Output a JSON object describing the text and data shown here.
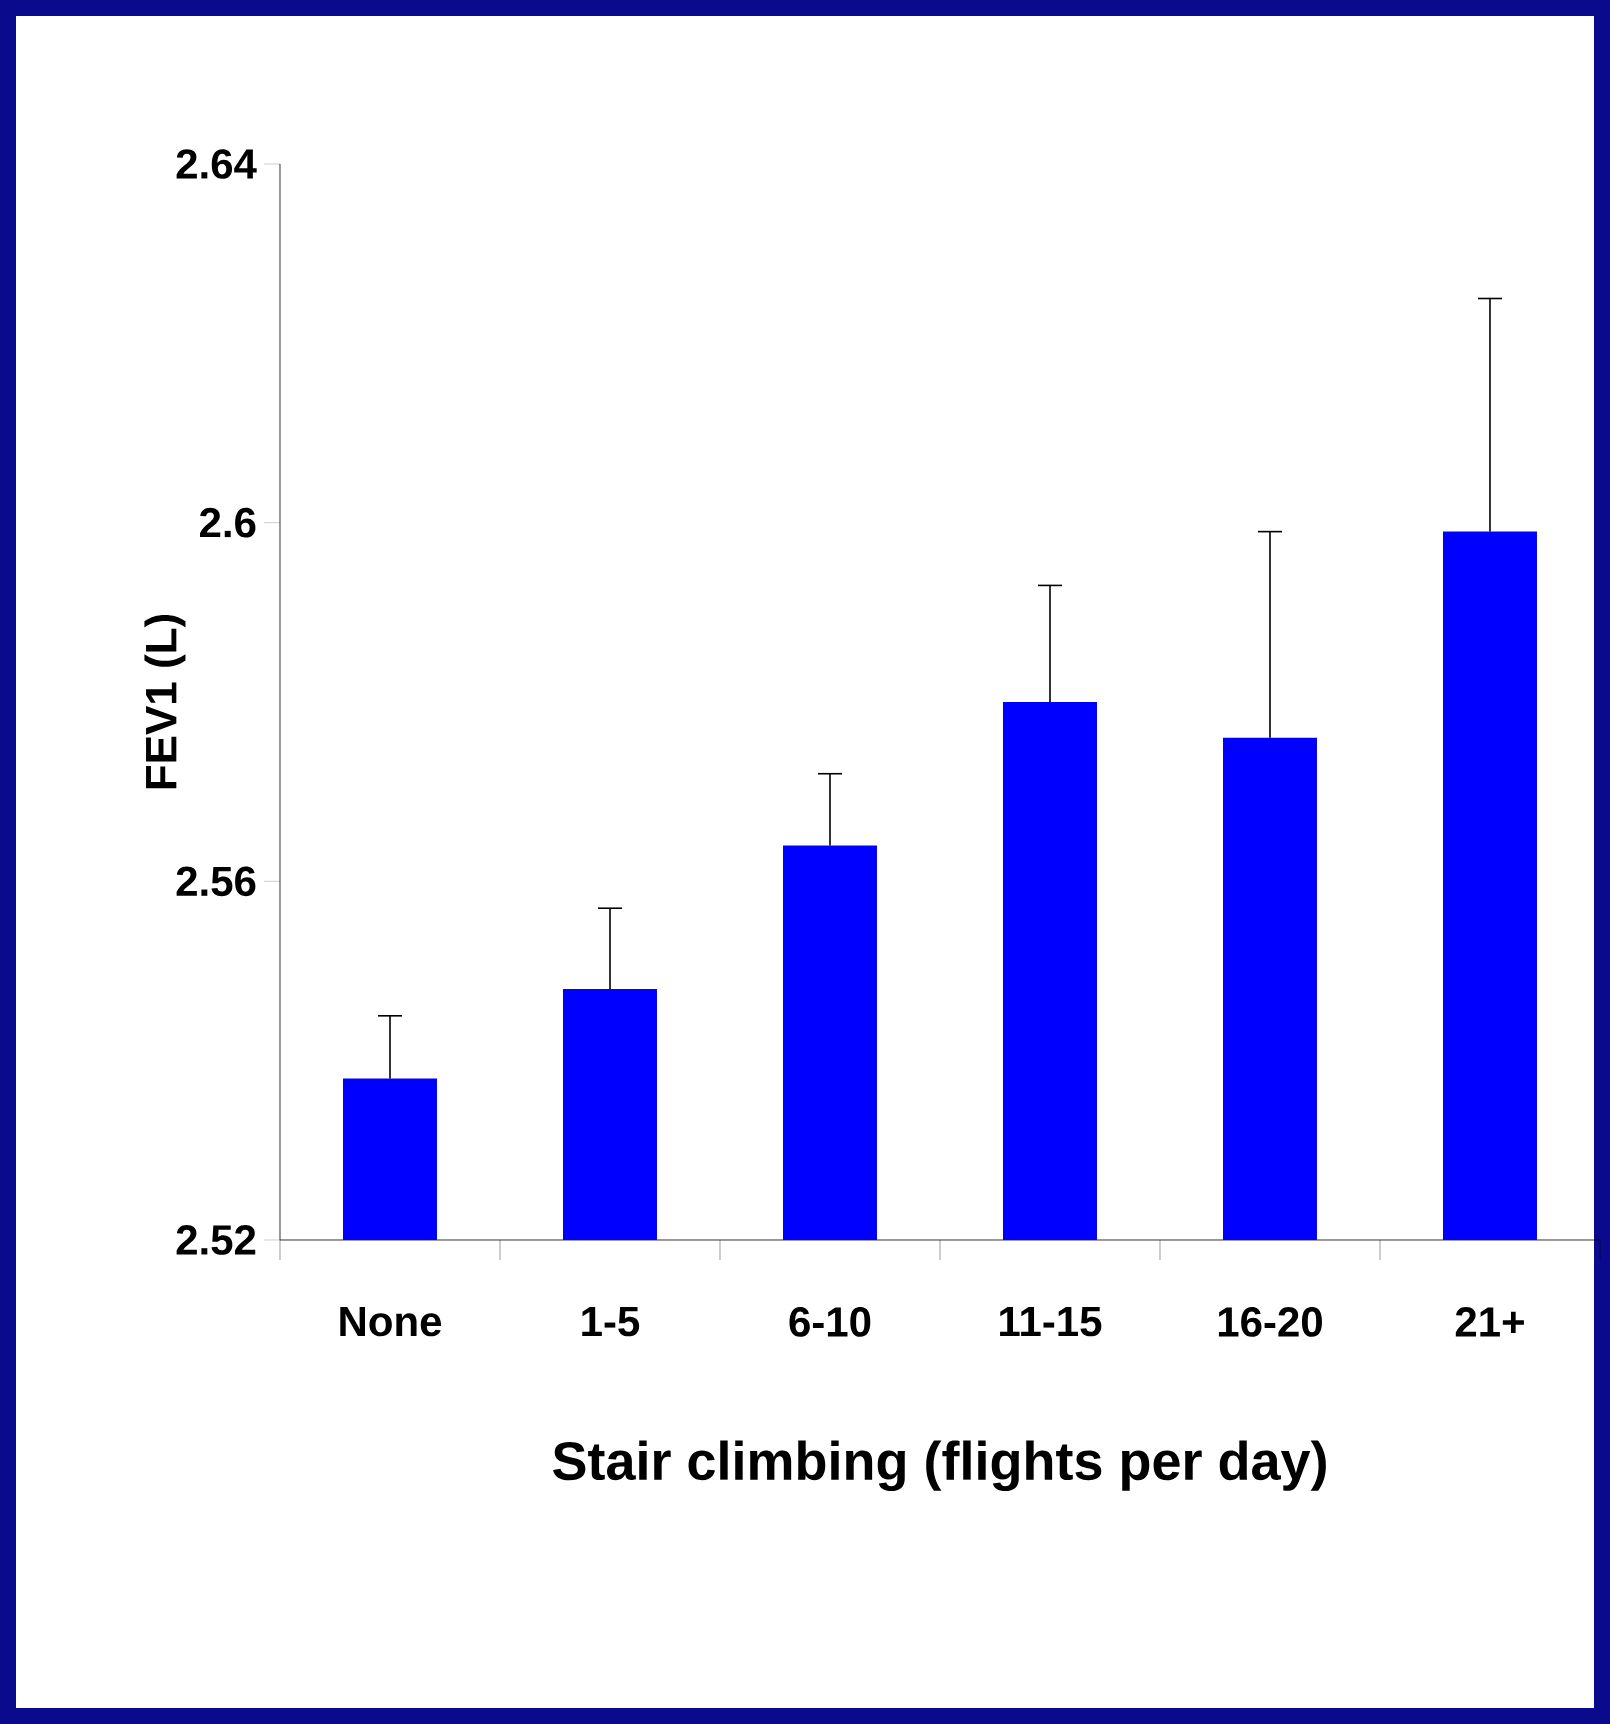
{
  "chart_data": {
    "type": "bar",
    "xlabel": "Stair climbing (flights per day)",
    "ylabel": "FEV1 (L)",
    "categories": [
      "None",
      "1-5",
      "6-10",
      "11-15",
      "16-20",
      "21+"
    ],
    "values": [
      2.538,
      2.548,
      2.564,
      2.58,
      2.576,
      2.599
    ],
    "errors": [
      [
        2.538,
        2.545
      ],
      [
        2.548,
        2.557
      ],
      [
        2.564,
        2.572
      ],
      [
        2.58,
        2.593
      ],
      [
        2.576,
        2.599
      ],
      [
        2.599,
        2.625
      ]
    ],
    "color": "#0000ff",
    "ylim": [
      2.52,
      2.64
    ],
    "yticks": [
      2.52,
      2.56,
      2.6,
      2.64
    ]
  }
}
